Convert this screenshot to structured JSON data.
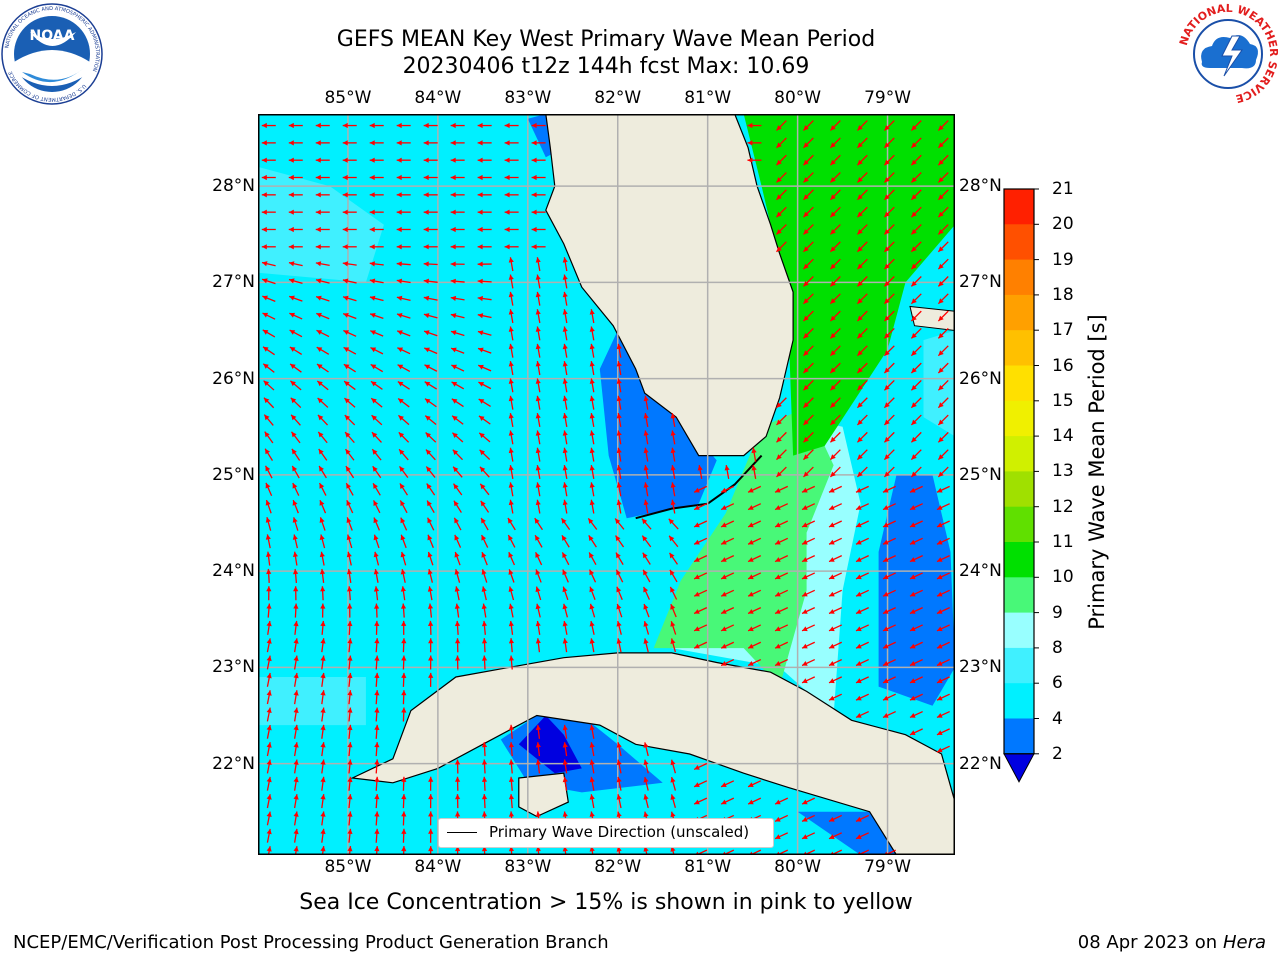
{
  "title": {
    "line1": "GEFS MEAN Key West Primary Wave Mean Period",
    "line2": "20230406 t12z 144h fcst   Max: 10.69"
  },
  "logos": {
    "left": {
      "icon": "noaa-logo-icon",
      "text_top": "NATIONAL OCEANIC AND ATMOSPHERIC ADMINISTRATION",
      "text_bottom": "U.S. DEPARTMENT OF COMMERCE",
      "center": "NOAA"
    },
    "right": {
      "icon": "nws-logo-icon",
      "text": "NATIONAL WEATHER SERVICE"
    }
  },
  "map": {
    "lon_labels": [
      "85°W",
      "84°W",
      "83°W",
      "82°W",
      "81°W",
      "80°W",
      "79°W"
    ],
    "lat_labels": [
      "28°N",
      "27°N",
      "26°N",
      "25°N",
      "24°N",
      "23°N",
      "22°N"
    ],
    "lon_range": [
      -86.0,
      -78.25
    ],
    "lat_range": [
      21.05,
      28.75
    ],
    "colors": {
      "land": "#eeecdd",
      "grid": "#b0b0b0",
      "arrow": "#ff0000",
      "coast": "#000000"
    },
    "legend": {
      "label": "Primary Wave Direction (unscaled)"
    }
  },
  "colorbar": {
    "label": "Primary Wave Mean Period [s]",
    "ticks": [
      "21",
      "20",
      "19",
      "18",
      "17",
      "16",
      "15",
      "14",
      "13",
      "12",
      "11",
      "10",
      "9",
      "8",
      "6",
      "4",
      "2"
    ],
    "levels": [
      {
        "from": 2,
        "to": 4,
        "color": "#0078ff"
      },
      {
        "from": 4,
        "to": 6,
        "color": "#00f0ff"
      },
      {
        "from": 6,
        "to": 8,
        "color": "#40f0ff"
      },
      {
        "from": 8,
        "to": 9,
        "color": "#98ffff"
      },
      {
        "from": 9,
        "to": 10,
        "color": "#48f878"
      },
      {
        "from": 10,
        "to": 11,
        "color": "#00e000"
      },
      {
        "from": 11,
        "to": 12,
        "color": "#60e000"
      },
      {
        "from": 12,
        "to": 13,
        "color": "#a0e000"
      },
      {
        "from": 13,
        "to": 14,
        "color": "#d0f000"
      },
      {
        "from": 14,
        "to": 15,
        "color": "#f0f000"
      },
      {
        "from": 15,
        "to": 16,
        "color": "#ffe000"
      },
      {
        "from": 16,
        "to": 17,
        "color": "#ffc000"
      },
      {
        "from": 17,
        "to": 18,
        "color": "#ffa000"
      },
      {
        "from": 18,
        "to": 19,
        "color": "#ff8000"
      },
      {
        "from": 19,
        "to": 20,
        "color": "#ff5000"
      },
      {
        "from": 20,
        "to": 21,
        "color": "#ff2000"
      }
    ],
    "under_color": "#0000e0"
  },
  "subtitle": "Sea Ice Concentration > 15% is shown in pink to yellow",
  "footer": {
    "left": "NCEP/EMC/Verification Post Processing Product Generation Branch",
    "date": "08 Apr 2023 on ",
    "host": "Hera"
  }
}
